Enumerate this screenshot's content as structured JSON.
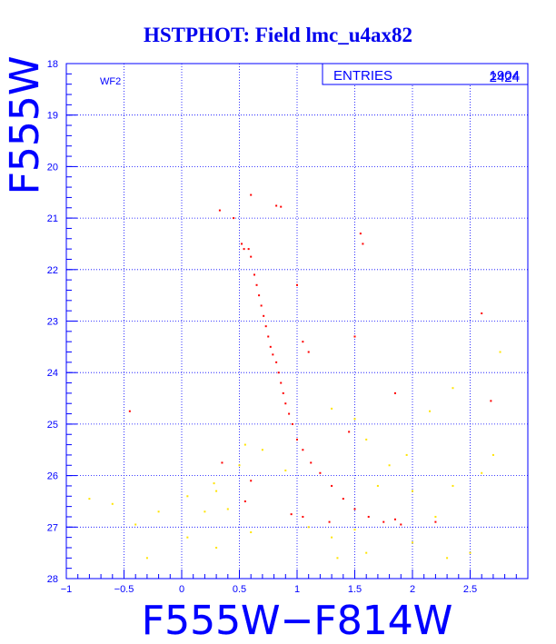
{
  "chart_data": {
    "type": "scatter",
    "title": "HSTPHOT: Field lmc_u4ax82",
    "xlabel": "F555W−F814W",
    "ylabel": "F555W",
    "xlim": [
      -1,
      3
    ],
    "ylim": [
      28,
      18
    ],
    "y_inverted": true,
    "grid": true,
    "grid_style": "dotted",
    "x_major_ticks": [
      -1,
      -0.5,
      0,
      0.5,
      1,
      1.5,
      2,
      2.5
    ],
    "x_tick_labels": [
      "−1",
      "−0.5",
      "0",
      "0.5",
      "1",
      "1.5",
      "2",
      "2.5"
    ],
    "y_major_ticks": [
      18,
      19,
      20,
      21,
      22,
      23,
      24,
      25,
      26,
      27,
      28
    ],
    "y_tick_labels": [
      "18",
      "19",
      "20",
      "21",
      "22",
      "23",
      "24",
      "25",
      "26",
      "27",
      "28"
    ],
    "panel_label": "WF2",
    "stats_box": {
      "label": "ENTRIES",
      "values": [
        "1904",
        "2424"
      ],
      "placement": "top-right"
    },
    "series": [
      {
        "color": "#ff0000",
        "values": [
          [
            0.82,
            20.76
          ],
          [
            0.86,
            20.78
          ],
          [
            0.6,
            20.55
          ],
          [
            0.45,
            21.0
          ],
          [
            0.52,
            21.5
          ],
          [
            0.54,
            21.6
          ],
          [
            0.58,
            21.6
          ],
          [
            0.6,
            21.75
          ],
          [
            0.63,
            22.1
          ],
          [
            0.65,
            22.3
          ],
          [
            0.67,
            22.5
          ],
          [
            0.69,
            22.7
          ],
          [
            0.71,
            22.9
          ],
          [
            0.73,
            23.1
          ],
          [
            0.75,
            23.3
          ],
          [
            0.77,
            23.5
          ],
          [
            0.79,
            23.65
          ],
          [
            0.82,
            23.8
          ],
          [
            0.84,
            24.0
          ],
          [
            0.86,
            24.2
          ],
          [
            0.88,
            24.4
          ],
          [
            0.9,
            24.6
          ],
          [
            0.93,
            24.8
          ],
          [
            0.96,
            25.0
          ],
          [
            1.0,
            25.3
          ],
          [
            1.05,
            25.5
          ],
          [
            1.12,
            25.75
          ],
          [
            1.2,
            25.95
          ],
          [
            1.3,
            26.2
          ],
          [
            1.4,
            26.45
          ],
          [
            1.5,
            26.65
          ],
          [
            1.62,
            26.8
          ],
          [
            1.75,
            26.9
          ],
          [
            1.85,
            26.85
          ],
          [
            1.28,
            26.9
          ],
          [
            1.05,
            26.8
          ],
          [
            0.95,
            26.75
          ],
          [
            0.55,
            26.5
          ],
          [
            0.6,
            26.1
          ],
          [
            1.55,
            21.3
          ],
          [
            1.57,
            21.5
          ],
          [
            0.33,
            20.85
          ],
          [
            1.0,
            22.3
          ],
          [
            1.05,
            23.4
          ],
          [
            1.1,
            23.6
          ],
          [
            1.5,
            23.3
          ],
          [
            2.6,
            22.85
          ],
          [
            2.68,
            24.55
          ],
          [
            1.85,
            24.4
          ],
          [
            -0.45,
            24.75
          ],
          [
            0.35,
            25.75
          ],
          [
            1.45,
            25.15
          ],
          [
            1.9,
            26.95
          ],
          [
            2.2,
            26.9
          ]
        ]
      },
      {
        "color": "#ffe400",
        "values": [
          [
            -0.8,
            26.45
          ],
          [
            -0.6,
            26.55
          ],
          [
            -0.4,
            26.95
          ],
          [
            -0.2,
            26.7
          ],
          [
            0.05,
            26.4
          ],
          [
            0.2,
            26.7
          ],
          [
            0.28,
            26.15
          ],
          [
            0.4,
            26.65
          ],
          [
            0.3,
            27.4
          ],
          [
            0.05,
            27.2
          ],
          [
            -0.3,
            27.6
          ],
          [
            1.6,
            27.5
          ],
          [
            2.0,
            27.3
          ],
          [
            2.3,
            27.6
          ],
          [
            2.5,
            27.5
          ],
          [
            2.2,
            26.8
          ],
          [
            2.0,
            26.3
          ],
          [
            2.6,
            25.95
          ],
          [
            2.7,
            25.6
          ],
          [
            2.76,
            23.6
          ],
          [
            2.35,
            24.3
          ],
          [
            1.1,
            27.0
          ],
          [
            1.3,
            27.2
          ],
          [
            1.5,
            27.05
          ],
          [
            1.35,
            27.6
          ],
          [
            1.7,
            26.2
          ],
          [
            1.8,
            25.8
          ],
          [
            1.95,
            25.6
          ],
          [
            1.6,
            25.3
          ],
          [
            1.5,
            24.9
          ],
          [
            2.15,
            24.75
          ],
          [
            1.3,
            24.7
          ],
          [
            0.9,
            25.9
          ],
          [
            0.7,
            25.5
          ],
          [
            0.55,
            25.4
          ],
          [
            0.5,
            25.8
          ],
          [
            2.35,
            26.2
          ],
          [
            0.6,
            27.1
          ],
          [
            0.3,
            26.3
          ]
        ]
      }
    ]
  }
}
